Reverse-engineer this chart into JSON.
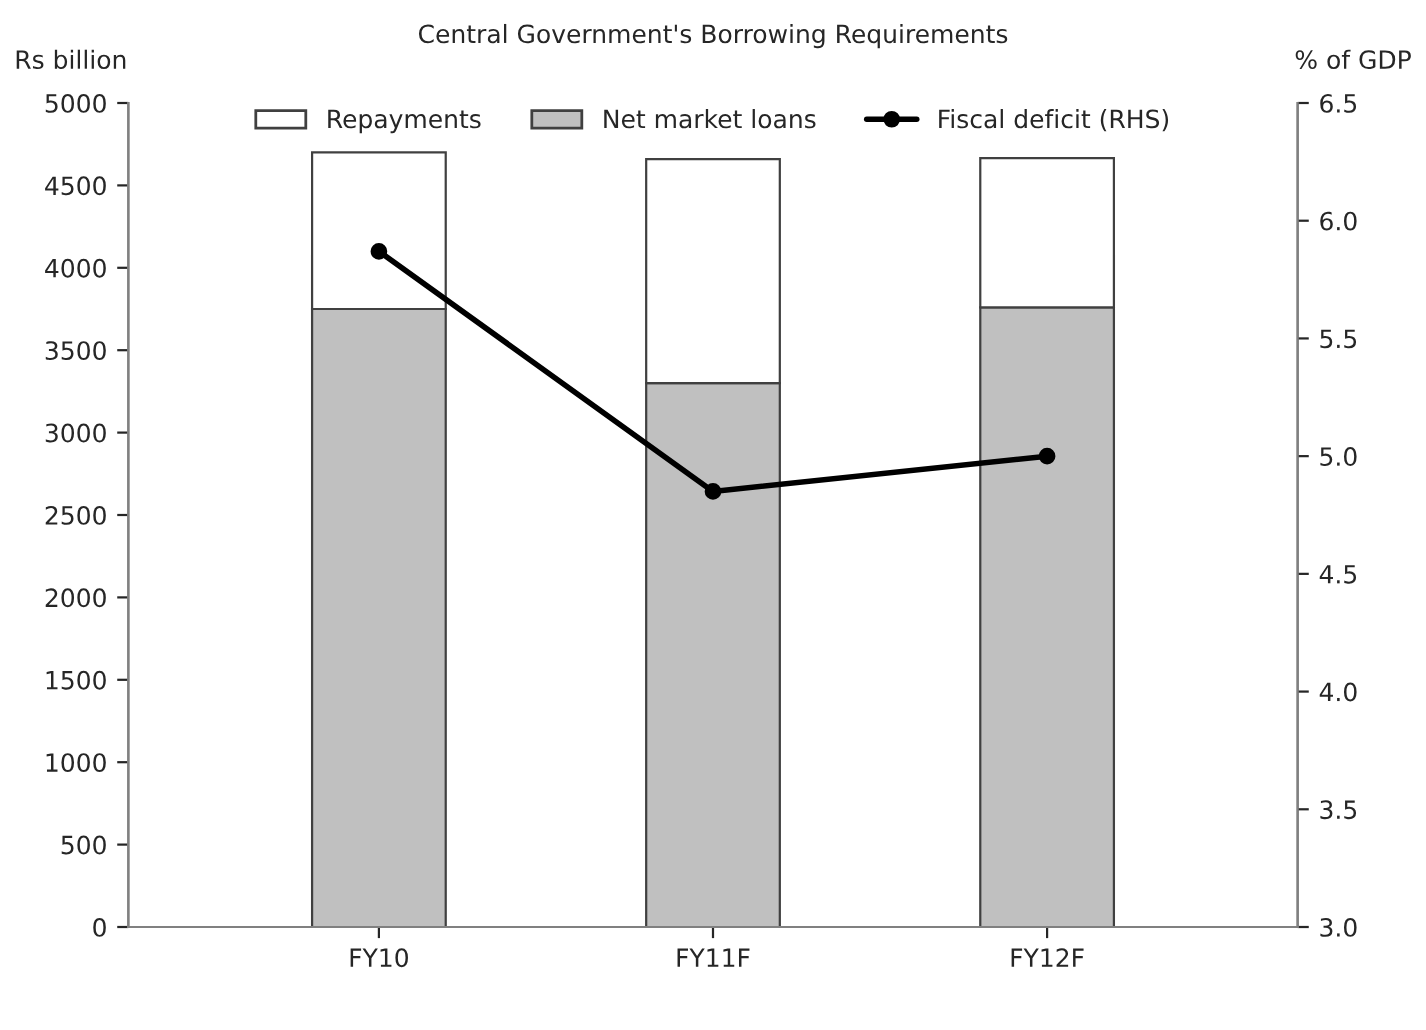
{
  "chart_data": {
    "type": "bar",
    "title": "Central Government's Borrowing Requirements",
    "ylabel": "Rs billion",
    "y2label": "% of GDP",
    "categories": [
      "FY10",
      "FY11F",
      "FY12F"
    ],
    "stacked": true,
    "series": [
      {
        "name": "Net market loans",
        "color": "#c0c0c0",
        "values": [
          3750,
          3300,
          3760
        ]
      },
      {
        "name": "Repayments",
        "color": "#ffffff",
        "values": [
          950,
          1360,
          905
        ]
      },
      {
        "name": "Fiscal deficit (RHS)",
        "type": "line",
        "axis": "y2",
        "color": "#000000",
        "values": [
          5.87,
          4.85,
          5.0
        ]
      }
    ],
    "ylim": [
      0,
      5000
    ],
    "yticks": [
      0,
      500,
      1000,
      1500,
      2000,
      2500,
      3000,
      3500,
      4000,
      4500,
      5000
    ],
    "y2lim": [
      3.0,
      6.5
    ],
    "y2ticks": [
      {
        "value": 3.0,
        "label": "3.0"
      },
      {
        "value": 3.5,
        "label": "3.5"
      },
      {
        "value": 4.0,
        "label": "4.0"
      },
      {
        "value": 4.5,
        "label": "4.5"
      },
      {
        "value": 5.0,
        "label": "5.0"
      },
      {
        "value": 5.5,
        "label": "5.5"
      },
      {
        "value": 6.0,
        "label": "6.0"
      },
      {
        "value": 6.5,
        "label": "6.5"
      }
    ],
    "marker": "circle",
    "line_style": "solid",
    "grid": false,
    "legend": "top"
  }
}
